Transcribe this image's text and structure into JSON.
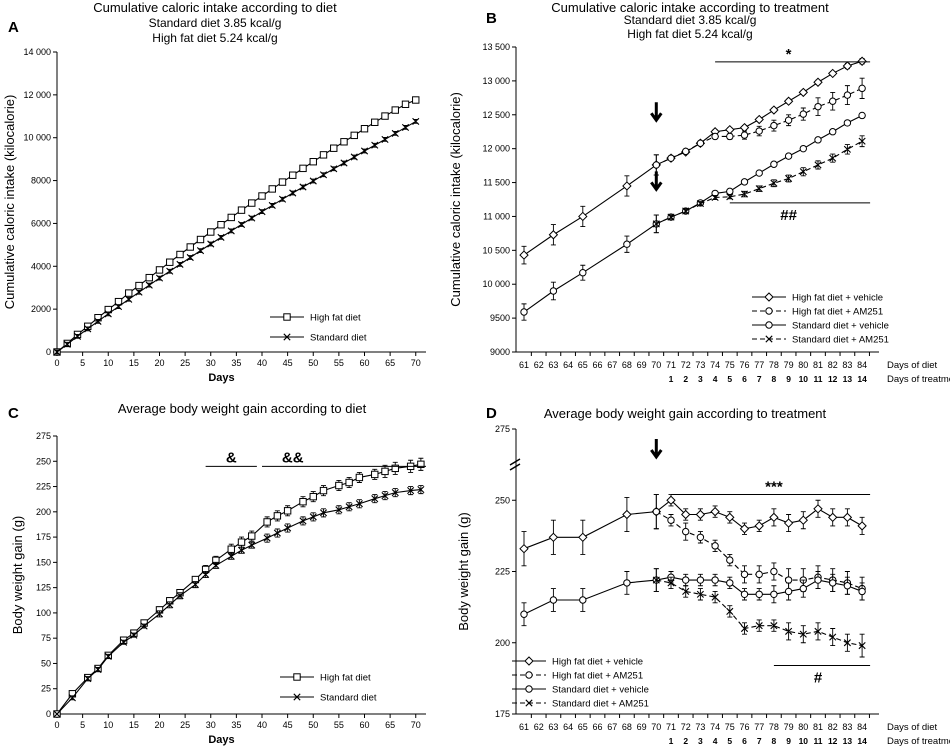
{
  "chart_data": [
    {
      "id": "A",
      "panel_letter": "A",
      "type": "line",
      "title": "Cumulative caloric intake according to diet",
      "subtitle_lines": [
        "Standard diet 3.85 kcal/g",
        "High fat diet 5.24 kcal/g"
      ],
      "xlabel": "Days",
      "ylabel": "Cumulative caloric intake (kilocalorie)",
      "xlim": [
        0,
        72
      ],
      "ylim": [
        0,
        14000
      ],
      "xticks": [
        0,
        5,
        10,
        15,
        20,
        25,
        30,
        35,
        40,
        45,
        50,
        55,
        60,
        65,
        70
      ],
      "yticks": [
        0,
        2000,
        4000,
        6000,
        8000,
        10000,
        12000,
        14000
      ],
      "ytick_labels": [
        "0",
        "2000",
        "4000",
        "6000",
        "8000",
        "10 000",
        "12 000",
        "14 000"
      ],
      "legend": [
        "High fat diet",
        "Standard diet"
      ],
      "series": [
        {
          "name": "High fat diet",
          "marker": "square",
          "dash": false,
          "x": [
            0,
            2,
            4,
            6,
            8,
            10,
            12,
            14,
            16,
            18,
            20,
            22,
            24,
            26,
            28,
            30,
            32,
            34,
            36,
            38,
            40,
            42,
            44,
            46,
            48,
            50,
            52,
            54,
            56,
            58,
            60,
            62,
            64,
            66,
            68,
            70
          ],
          "y": [
            0,
            400,
            820,
            1200,
            1600,
            1980,
            2350,
            2750,
            3100,
            3470,
            3830,
            4190,
            4550,
            4900,
            5250,
            5600,
            5940,
            6280,
            6620,
            6950,
            7280,
            7610,
            7930,
            8250,
            8570,
            8880,
            9200,
            9510,
            9810,
            10110,
            10420,
            10720,
            11010,
            11290,
            11560,
            11760
          ],
          "err": 90
        },
        {
          "name": "Standard diet",
          "marker": "x",
          "dash": false,
          "x": [
            0,
            2,
            4,
            6,
            8,
            10,
            12,
            14,
            16,
            18,
            20,
            22,
            24,
            26,
            28,
            30,
            32,
            34,
            36,
            38,
            40,
            42,
            44,
            46,
            48,
            50,
            52,
            54,
            56,
            58,
            60,
            62,
            64,
            66,
            68,
            70
          ],
          "y": [
            0,
            360,
            730,
            1080,
            1430,
            1780,
            2120,
            2460,
            2790,
            3120,
            3450,
            3770,
            4090,
            4410,
            4730,
            5040,
            5350,
            5650,
            5950,
            6250,
            6550,
            6840,
            7130,
            7420,
            7700,
            7980,
            8270,
            8550,
            8820,
            9100,
            9380,
            9650,
            9920,
            10200,
            10480,
            10760
          ],
          "err": 90
        }
      ]
    },
    {
      "id": "B",
      "panel_letter": "B",
      "type": "line",
      "title": "Cumulative caloric intake according to treatment",
      "subtitle_lines": [
        "Standard diet 3.85 kcal/g",
        "High fat diet 5.24 kcal/g"
      ],
      "ylabel": "Cumulative caloric intake (kilocalorie)",
      "ylim": [
        9000,
        13500
      ],
      "yticks": [
        9000,
        9500,
        10000,
        10500,
        11000,
        11500,
        12000,
        12500,
        13000,
        13500
      ],
      "ytick_labels": [
        "9000",
        "9500",
        "10 000",
        "10 500",
        "11 000",
        "11 500",
        "12 000",
        "12 500",
        "13 000",
        "13 500"
      ],
      "x_categories": [
        "61",
        "62",
        "63",
        "64",
        "65",
        "66",
        "67",
        "68",
        "69",
        "70",
        "71",
        "72",
        "73",
        "74",
        "75",
        "76",
        "77",
        "78",
        "79",
        "80",
        "81",
        "82",
        "83",
        "84"
      ],
      "treatment_days": [
        "1",
        "2",
        "3",
        "4",
        "5",
        "6",
        "7",
        "8",
        "9",
        "10",
        "11",
        "12",
        "13",
        "14"
      ],
      "x_axis_names": [
        "Days of diet",
        "Days of treatment"
      ],
      "legend": [
        "High fat diet + vehicle",
        "High fat diet + AM251",
        "Standard diet + vehicle",
        "Standard diet + AM251"
      ],
      "annotations": {
        "top_sig": "*",
        "bottom_sig": "##"
      },
      "series": [
        {
          "name": "High fat diet + vehicle",
          "marker": "diamond",
          "dash": false,
          "x": [
            61,
            63,
            65,
            68,
            70,
            71,
            72,
            73,
            74,
            75,
            76,
            77,
            78,
            79,
            80,
            81,
            82,
            83,
            84
          ],
          "y": [
            10430,
            10730,
            11000,
            11450,
            11760,
            11860,
            11950,
            12080,
            12250,
            12280,
            12310,
            12430,
            12570,
            12700,
            12830,
            12980,
            13110,
            13220,
            13290
          ],
          "err": [
            130,
            150,
            150,
            150,
            150,
            30,
            30,
            30,
            30,
            30,
            30,
            30,
            30,
            30,
            30,
            30,
            30,
            40,
            40
          ]
        },
        {
          "name": "High fat diet + AM251",
          "marker": "circle",
          "dash": true,
          "x": [
            70,
            71,
            72,
            73,
            74,
            75,
            76,
            77,
            78,
            79,
            80,
            81,
            82,
            83,
            84
          ],
          "y": [
            11760,
            11860,
            11960,
            12080,
            12180,
            12180,
            12200,
            12260,
            12340,
            12420,
            12510,
            12620,
            12700,
            12790,
            12890
          ],
          "err": [
            150,
            30,
            30,
            30,
            30,
            40,
            60,
            70,
            80,
            80,
            90,
            130,
            130,
            140,
            150
          ]
        },
        {
          "name": "Standard diet + vehicle",
          "marker": "circle",
          "dash": false,
          "x": [
            61,
            63,
            65,
            68,
            70,
            71,
            72,
            73,
            74,
            75,
            76,
            77,
            78,
            79,
            80,
            81,
            82,
            83,
            84
          ],
          "y": [
            9590,
            9900,
            10170,
            10590,
            10890,
            10990,
            11080,
            11200,
            11340,
            11370,
            11510,
            11640,
            11770,
            11890,
            12000,
            12130,
            12250,
            12380,
            12490
          ],
          "err": [
            120,
            130,
            110,
            120,
            130,
            30,
            30,
            30,
            30,
            30,
            30,
            30,
            30,
            30,
            30,
            30,
            30,
            30,
            30
          ]
        },
        {
          "name": "Standard diet + AM251",
          "marker": "x",
          "dash": true,
          "x": [
            70,
            71,
            72,
            73,
            74,
            75,
            76,
            77,
            78,
            79,
            80,
            81,
            82,
            83,
            84
          ],
          "y": [
            10890,
            10990,
            11080,
            11190,
            11280,
            11290,
            11330,
            11410,
            11490,
            11560,
            11660,
            11760,
            11860,
            11990,
            12110
          ],
          "err": [
            130,
            30,
            30,
            30,
            30,
            30,
            40,
            40,
            50,
            50,
            60,
            60,
            60,
            70,
            80
          ]
        }
      ]
    },
    {
      "id": "C",
      "panel_letter": "C",
      "type": "line",
      "title": "Average body weight gain according to diet",
      "xlabel": "Days",
      "ylabel": "Body weight gain (g)",
      "xlim": [
        0,
        72
      ],
      "ylim": [
        0,
        275
      ],
      "xticks": [
        0,
        5,
        10,
        15,
        20,
        25,
        30,
        35,
        40,
        45,
        50,
        55,
        60,
        65,
        70
      ],
      "yticks": [
        0,
        25,
        50,
        75,
        100,
        125,
        150,
        175,
        200,
        225,
        250,
        275
      ],
      "ytick_labels": [
        "0",
        "25",
        "50",
        "75",
        "100",
        "125",
        "150",
        "175",
        "200",
        "225",
        "250",
        "275"
      ],
      "legend": [
        "High fat diet",
        "Standard diet"
      ],
      "annotations": {
        "sig1": "&",
        "sig2": "&&"
      },
      "series": [
        {
          "name": "High fat diet",
          "marker": "square",
          "dash": false,
          "x": [
            0,
            3,
            6,
            8,
            10,
            13,
            15,
            17,
            20,
            22,
            24,
            27,
            29,
            31,
            34,
            36,
            38,
            41,
            43,
            45,
            48,
            50,
            52,
            55,
            57,
            59,
            62,
            64,
            66,
            69,
            71
          ],
          "y": [
            0,
            20,
            36,
            45,
            58,
            73,
            80,
            90,
            103,
            112,
            120,
            133,
            143,
            152,
            163,
            170,
            176,
            190,
            196,
            201,
            210,
            215,
            221,
            226,
            229,
            234,
            237,
            240,
            243,
            245,
            247
          ],
          "err": [
            0,
            2,
            2,
            2,
            2,
            2,
            2,
            2,
            3,
            3,
            3,
            3,
            4,
            4,
            5,
            5,
            5,
            5,
            5,
            5,
            5,
            5,
            5,
            5,
            5,
            5,
            5,
            6,
            6,
            6,
            6
          ]
        },
        {
          "name": "Standard diet",
          "marker": "x",
          "dash": false,
          "x": [
            0,
            3,
            6,
            8,
            10,
            13,
            15,
            17,
            20,
            22,
            24,
            27,
            29,
            31,
            34,
            36,
            38,
            41,
            43,
            45,
            48,
            50,
            52,
            55,
            57,
            59,
            62,
            64,
            66,
            69,
            71
          ],
          "y": [
            0,
            16,
            35,
            44,
            57,
            71,
            78,
            87,
            99,
            108,
            117,
            128,
            138,
            147,
            156,
            162,
            167,
            174,
            179,
            184,
            191,
            195,
            199,
            202,
            205,
            208,
            213,
            216,
            219,
            221,
            222
          ],
          "err": [
            0,
            2,
            2,
            2,
            2,
            2,
            2,
            2,
            3,
            3,
            3,
            3,
            3,
            3,
            3,
            3,
            3,
            4,
            4,
            4,
            4,
            4,
            4,
            4,
            4,
            4,
            4,
            4,
            4,
            4,
            4
          ]
        }
      ]
    },
    {
      "id": "D",
      "panel_letter": "D",
      "type": "line",
      "title": "Average body weight gain according to treatment",
      "ylabel": "Body weight gain (g)",
      "ylim": [
        175,
        275
      ],
      "yticks": [
        175,
        200,
        225,
        250,
        275
      ],
      "ytick_labels": [
        "175",
        "200",
        "225",
        "250",
        "275"
      ],
      "x_categories": [
        "61",
        "62",
        "63",
        "64",
        "65",
        "66",
        "67",
        "68",
        "69",
        "70",
        "71",
        "72",
        "73",
        "74",
        "75",
        "76",
        "77",
        "78",
        "79",
        "80",
        "81",
        "82",
        "83",
        "84"
      ],
      "treatment_days": [
        "1",
        "2",
        "3",
        "4",
        "5",
        "6",
        "7",
        "8",
        "9",
        "10",
        "11",
        "12",
        "13",
        "14"
      ],
      "x_axis_names": [
        "Days of diet",
        "Days of treatment"
      ],
      "legend": [
        "High fat diet + vehicle",
        "High fat diet + AM251",
        "Standard diet + vehicle",
        "Standard diet + AM251"
      ],
      "annotations": {
        "top_sig": "***",
        "bottom_sig": "#"
      },
      "series": [
        {
          "name": "High fat diet + vehicle",
          "marker": "diamond",
          "dash": false,
          "x": [
            61,
            63,
            65,
            68,
            70,
            71,
            72,
            73,
            74,
            75,
            76,
            77,
            78,
            79,
            80,
            81,
            82,
            83,
            84
          ],
          "y": [
            233,
            237,
            237,
            245,
            246,
            250,
            245,
            245,
            246,
            244,
            240,
            241,
            244,
            242,
            243,
            247,
            244,
            244,
            241
          ],
          "err": [
            6,
            6,
            6,
            6,
            6,
            2,
            2,
            2,
            2,
            2,
            2,
            2,
            3,
            3,
            3,
            3,
            3,
            3,
            3
          ]
        },
        {
          "name": "High fat diet + AM251",
          "marker": "circle",
          "dash": true,
          "x": [
            70,
            71,
            72,
            73,
            74,
            75,
            76,
            77,
            78,
            79,
            80,
            81,
            82,
            83,
            84
          ],
          "y": [
            246,
            243,
            239,
            237,
            234,
            229,
            224,
            224,
            225,
            222,
            222,
            223,
            222,
            221,
            219
          ],
          "err": [
            6,
            2,
            3,
            2,
            2,
            2,
            3,
            3,
            3,
            4,
            4,
            4,
            4,
            4,
            4
          ]
        },
        {
          "name": "Standard diet + vehicle",
          "marker": "circle",
          "dash": false,
          "x": [
            61,
            63,
            65,
            68,
            70,
            71,
            72,
            73,
            74,
            75,
            76,
            77,
            78,
            79,
            80,
            81,
            82,
            83,
            84
          ],
          "y": [
            210,
            215,
            215,
            221,
            222,
            223,
            222,
            222,
            222,
            221,
            217,
            217,
            217,
            218,
            219,
            222,
            221,
            220,
            218
          ],
          "err": [
            4,
            4,
            4,
            4,
            4,
            2,
            2,
            2,
            2,
            2,
            2,
            2,
            3,
            3,
            3,
            3,
            3,
            3,
            3
          ]
        },
        {
          "name": "Standard diet + AM251",
          "marker": "x",
          "dash": true,
          "x": [
            70,
            71,
            72,
            73,
            74,
            75,
            76,
            77,
            78,
            79,
            80,
            81,
            82,
            83,
            84
          ],
          "y": [
            222,
            221,
            218,
            217,
            216,
            211,
            205,
            206,
            206,
            204,
            203,
            204,
            202,
            200,
            199
          ],
          "err": [
            4,
            2,
            2,
            2,
            2,
            2,
            2,
            2,
            2,
            3,
            3,
            3,
            3,
            3,
            4
          ]
        }
      ]
    }
  ]
}
